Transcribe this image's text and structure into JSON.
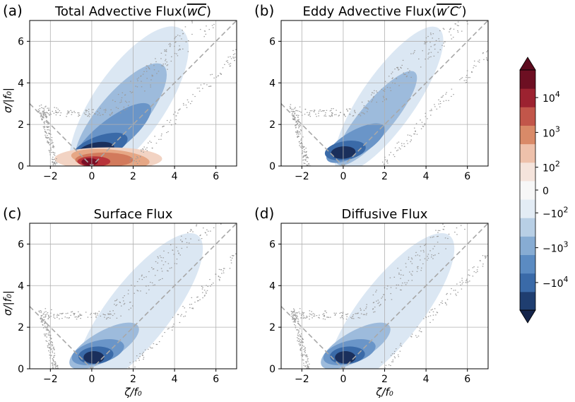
{
  "chart_data": [
    {
      "type": "heatmap",
      "panel_label": "(a)",
      "title": "Total Advective Flux(",
      "title_math": "wC",
      "title_suffix": ")",
      "ylabel": "σ/|f₀|",
      "xlabel": "",
      "xlim": [
        -3,
        7
      ],
      "ylim": [
        0,
        7
      ],
      "xticks": [
        -2,
        0,
        2,
        4,
        6
      ],
      "yticks": [
        0,
        2,
        4,
        6
      ],
      "xticklabels": [
        "−2",
        "0",
        "2",
        "4",
        "6"
      ],
      "yticklabels": [
        "0",
        "2",
        "4",
        "6"
      ],
      "grid": true,
      "dashed_line": [
        [
          -3,
          3
        ],
        [
          0,
          0
        ],
        [
          7,
          7
        ]
      ],
      "blobs": [
        {
          "cx": 1.8,
          "cy": 3.0,
          "rx": 4.4,
          "ry": 1.7,
          "rot": -55,
          "level": -1
        },
        {
          "cx": 1.4,
          "cy": 2.4,
          "rx": 3.2,
          "ry": 1.1,
          "rot": -50,
          "level": -2
        },
        {
          "cx": 1.0,
          "cy": 1.5,
          "rx": 2.3,
          "ry": 0.75,
          "rot": -38,
          "level": -3
        },
        {
          "cx": 0.4,
          "cy": 0.9,
          "rx": 1.4,
          "ry": 0.55,
          "rot": -20,
          "level": -4
        },
        {
          "cx": 0.2,
          "cy": 0.75,
          "rx": 0.9,
          "ry": 0.38,
          "rot": -12,
          "level": -5
        },
        {
          "cx": 0.8,
          "cy": 0.35,
          "rx": 2.6,
          "ry": 0.55,
          "rot": 0,
          "level": 1
        },
        {
          "cx": 0.9,
          "cy": 0.35,
          "rx": 1.9,
          "ry": 0.45,
          "rot": 5,
          "level": 2
        },
        {
          "cx": 0.6,
          "cy": 0.3,
          "rx": 1.4,
          "ry": 0.35,
          "rot": 0,
          "level": 3
        },
        {
          "cx": 0.1,
          "cy": 0.22,
          "rx": 0.8,
          "ry": 0.25,
          "rot": 0,
          "level": 4
        },
        {
          "cx": -0.1,
          "cy": 0.2,
          "rx": 0.4,
          "ry": 0.18,
          "rot": 0,
          "level": 5
        }
      ]
    },
    {
      "type": "heatmap",
      "panel_label": "(b)",
      "title": "Eddy Advective Flux(",
      "title_math": "w′C′",
      "title_suffix": ")",
      "ylabel": "",
      "xlabel": "",
      "xlim": [
        -3,
        7
      ],
      "ylim": [
        0,
        7
      ],
      "xticks": [
        -2,
        0,
        2,
        4,
        6
      ],
      "yticks": [
        0,
        2,
        4,
        6
      ],
      "xticklabels": [
        "−2",
        "0",
        "2",
        "4",
        "6"
      ],
      "yticklabels": [
        "0",
        "2",
        "4",
        "6"
      ],
      "grid": true,
      "dashed_line": [
        [
          -3,
          3
        ],
        [
          0,
          0
        ],
        [
          7,
          7
        ]
      ],
      "blobs": [
        {
          "cx": 2.2,
          "cy": 3.2,
          "rx": 4.2,
          "ry": 1.3,
          "rot": -55,
          "level": -1
        },
        {
          "cx": 1.6,
          "cy": 2.3,
          "rx": 2.9,
          "ry": 0.8,
          "rot": -50,
          "level": -2
        },
        {
          "cx": 0.6,
          "cy": 1.1,
          "rx": 1.6,
          "ry": 0.6,
          "rot": -30,
          "level": -3
        },
        {
          "cx": 0.1,
          "cy": 0.75,
          "rx": 1.0,
          "ry": 0.45,
          "rot": -10,
          "level": -4
        },
        {
          "cx": 0.0,
          "cy": 0.65,
          "rx": 0.6,
          "ry": 0.3,
          "rot": -5,
          "level": -5
        }
      ]
    },
    {
      "type": "heatmap",
      "panel_label": "(c)",
      "title": "Surface Flux",
      "title_math": "",
      "title_suffix": "",
      "ylabel": "σ/|f₀|",
      "xlabel": "ζ/f₀",
      "xlim": [
        -3,
        7
      ],
      "ylim": [
        0,
        7
      ],
      "xticks": [
        -2,
        0,
        2,
        4,
        6
      ],
      "yticks": [
        0,
        2,
        4,
        6
      ],
      "xticklabels": [
        "−2",
        "0",
        "2",
        "4",
        "6"
      ],
      "yticklabels": [
        "0",
        "2",
        "4",
        "6"
      ],
      "grid": true,
      "dashed_line": [
        [
          -3,
          3
        ],
        [
          0,
          0
        ],
        [
          7,
          7
        ]
      ],
      "blobs": [
        {
          "cx": 2.3,
          "cy": 2.8,
          "rx": 4.6,
          "ry": 1.5,
          "rot": -52,
          "level": -1
        },
        {
          "cx": 0.6,
          "cy": 1.1,
          "rx": 1.9,
          "ry": 0.7,
          "rot": -30,
          "level": -2
        },
        {
          "cx": 0.3,
          "cy": 0.8,
          "rx": 1.3,
          "ry": 0.55,
          "rot": -15,
          "level": -3
        },
        {
          "cx": 0.2,
          "cy": 0.65,
          "rx": 0.85,
          "ry": 0.42,
          "rot": -5,
          "level": -4
        },
        {
          "cx": 0.1,
          "cy": 0.55,
          "rx": 0.5,
          "ry": 0.3,
          "rot": 0,
          "level": -5
        }
      ]
    },
    {
      "type": "heatmap",
      "panel_label": "(d)",
      "title": "Diffusive Flux",
      "title_math": "",
      "title_suffix": "",
      "ylabel": "",
      "xlabel": "ζ/f₀",
      "xlim": [
        -3,
        7
      ],
      "ylim": [
        0,
        7
      ],
      "xticks": [
        -2,
        0,
        2,
        4,
        6
      ],
      "yticks": [
        0,
        2,
        4,
        6
      ],
      "xticklabels": [
        "−2",
        "0",
        "2",
        "4",
        "6"
      ],
      "yticklabels": [
        "0",
        "2",
        "4",
        "6"
      ],
      "grid": true,
      "dashed_line": [
        [
          -3,
          3
        ],
        [
          0,
          0
        ],
        [
          7,
          7
        ]
      ],
      "blobs": [
        {
          "cx": 2.3,
          "cy": 2.8,
          "rx": 4.6,
          "ry": 1.5,
          "rot": -52,
          "level": -1
        },
        {
          "cx": 0.6,
          "cy": 1.1,
          "rx": 1.9,
          "ry": 0.7,
          "rot": -30,
          "level": -2
        },
        {
          "cx": 0.3,
          "cy": 0.8,
          "rx": 1.3,
          "ry": 0.55,
          "rot": -15,
          "level": -3
        },
        {
          "cx": 0.2,
          "cy": 0.65,
          "rx": 0.85,
          "ry": 0.42,
          "rot": -5,
          "level": -4
        },
        {
          "cx": 0.1,
          "cy": 0.55,
          "rx": 0.5,
          "ry": 0.3,
          "rot": 0,
          "level": -5
        }
      ]
    }
  ],
  "colorbar": {
    "colors": [
      "#1f3e70",
      "#3a6aa8",
      "#5b8bc2",
      "#87acd3",
      "#b8cfe5",
      "#e3ecf5",
      "#f7f7f7",
      "#f5e4dc",
      "#eec1ab",
      "#d98a68",
      "#c2564a",
      "#9c2230",
      "#6d0f22"
    ],
    "extend_low": "#14244a",
    "extend_high": "#5c0a1e",
    "ticks": [
      {
        "pos": 0.115,
        "base": "10",
        "exp": "4",
        "sign": ""
      },
      {
        "pos": 0.26,
        "base": "10",
        "exp": "3",
        "sign": ""
      },
      {
        "pos": 0.405,
        "base": "10",
        "exp": "2",
        "sign": ""
      },
      {
        "pos": 0.5,
        "base": "0",
        "exp": "",
        "sign": ""
      },
      {
        "pos": 0.595,
        "base": "10",
        "exp": "2",
        "sign": "−"
      },
      {
        "pos": 0.74,
        "base": "10",
        "exp": "3",
        "sign": "−"
      },
      {
        "pos": 0.885,
        "base": "10",
        "exp": "4",
        "sign": "−"
      }
    ]
  },
  "level_colors": {
    "-5": "#1a2f5c",
    "-4": "#3a6aa8",
    "-3": "#6a95c8",
    "-2": "#9dbbdc",
    "-1": "#dbe7f3",
    "1": "#f2d3c3",
    "2": "#e6a785",
    "3": "#d27a5c",
    "4": "#b8343a",
    "5": "#7a0e25"
  }
}
